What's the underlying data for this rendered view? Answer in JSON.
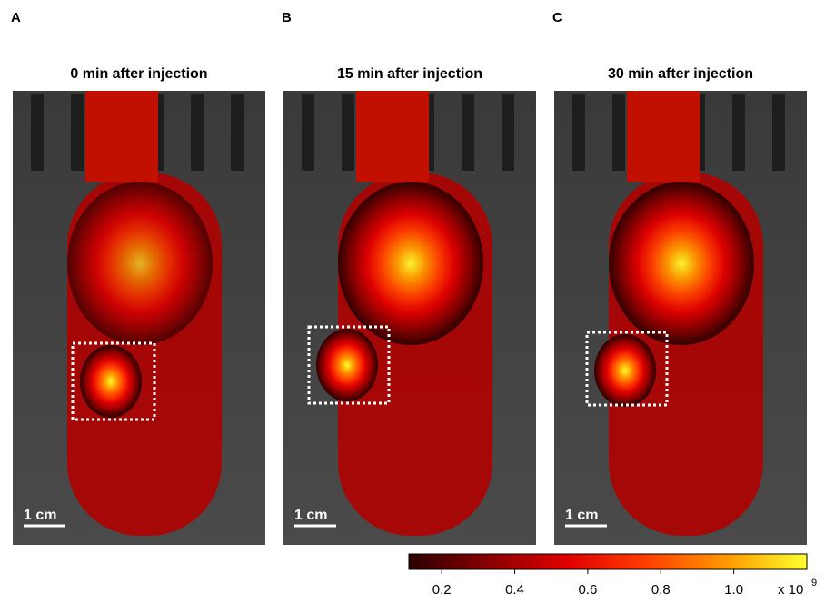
{
  "panels": [
    {
      "label": "A",
      "title": "0 min after injection",
      "scale_bar": "1 cm"
    },
    {
      "label": "B",
      "title": "15 min after injection",
      "scale_bar": "1 cm"
    },
    {
      "label": "C",
      "title": "30 min after injection",
      "scale_bar": "1 cm"
    }
  ],
  "colorbar": {
    "range": [
      0.11,
      1.2
    ],
    "ticks": [
      0.2,
      0.4,
      0.6,
      0.8,
      {
        "value": 1,
        "label": "1.0"
      }
    ],
    "unit": "x 10",
    "exponent": "9",
    "colors": [
      "#2a0000",
      "#8a0000",
      "#e00000",
      "#ff4000",
      "#ff9a00",
      "#ffff30"
    ]
  }
}
